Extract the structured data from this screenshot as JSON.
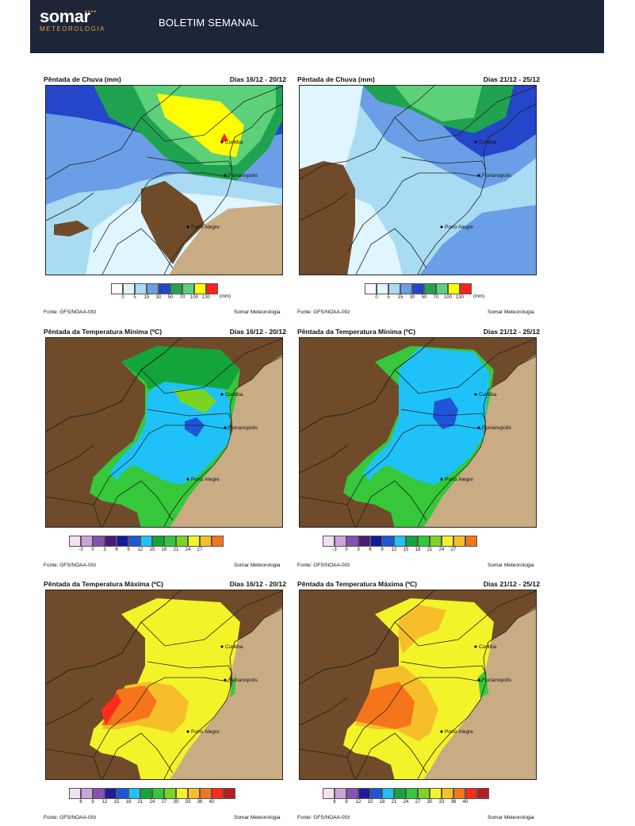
{
  "header": {
    "brand": "somar",
    "brand_dots": "••••",
    "brand_sub": "METEOROLOGIA",
    "title": "BOLETIM SEMANAL"
  },
  "source": "Fonte: GFS/NOAA-00z",
  "credit": "Somar Meteorologia",
  "cities": [
    "Curitiba",
    "Florianopolis",
    "Porto Alegre"
  ],
  "scales": {
    "rain": {
      "colors": [
        "#ffffff",
        "#dff5ff",
        "#a9dcf2",
        "#6a9ee6",
        "#2546c8",
        "#1fa350",
        "#5dd17a",
        "#ffff00",
        "#ff2020"
      ],
      "ticks": [
        "0",
        "5",
        "15",
        "30",
        "50",
        "70",
        "100",
        "130"
      ],
      "units": "(mm)"
    },
    "tmin": {
      "colors": [
        "#f3e0f2",
        "#caa5dc",
        "#8a4fb4",
        "#4a1a7a",
        "#0d1b9c",
        "#1f55d8",
        "#1ec2f8",
        "#13a53a",
        "#36c83a",
        "#79d521",
        "#f3f32a",
        "#f6bf2a",
        "#f5761a"
      ],
      "ticks": [
        "-3",
        "0",
        "3",
        "6",
        "9",
        "12",
        "15",
        "18",
        "21",
        "24",
        "27"
      ]
    },
    "tmax": {
      "colors": [
        "#f3e0f2",
        "#caa5dc",
        "#8a4fb4",
        "#1e1a9c",
        "#1f55d8",
        "#1ec2f8",
        "#13a53a",
        "#36c83a",
        "#79d521",
        "#f3f32a",
        "#f6bf2a",
        "#f5761a",
        "#ff2a1a",
        "#b51e1e"
      ],
      "ticks": [
        "6",
        "9",
        "12",
        "15",
        "18",
        "21",
        "24",
        "27",
        "30",
        "33",
        "36",
        "40"
      ]
    }
  },
  "panels": [
    {
      "title": "Pêntada de Chuva (mm)",
      "dates": "Dias 16/12 - 20/12",
      "scale": "rain"
    },
    {
      "title": "Pêntada de Chuva (mm)",
      "dates": "Dias 21/12 - 25/12",
      "scale": "rain"
    },
    {
      "title": "Pêntada da Temperatura Mínima (ºC)",
      "dates": "Dias 16/12 - 20/12",
      "scale": "tmin"
    },
    {
      "title": "Pêntada da Temperatura Mínima (ºC)",
      "dates": "Dias 21/12 - 25/12",
      "scale": "tmin"
    },
    {
      "title": "Pêntada da Temperatura Máxima (ºC)",
      "dates": "Dias 16/12 - 20/12",
      "scale": "tmax"
    },
    {
      "title": "Pêntada da Temperatura Máxima (ºC)",
      "dates": "Dias 21/12 - 25/12",
      "scale": "tmax"
    }
  ]
}
